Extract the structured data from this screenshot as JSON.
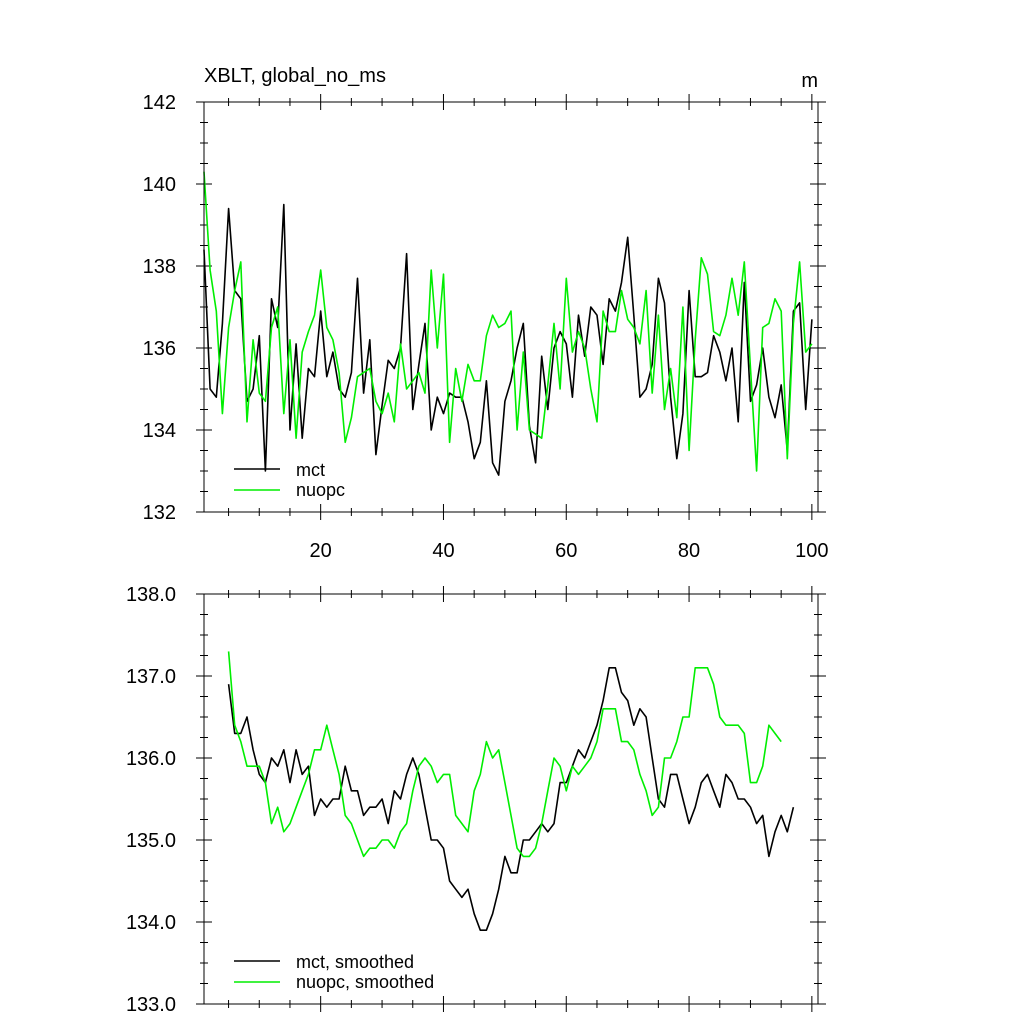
{
  "chart_data": [
    {
      "type": "line",
      "title": "XBLT, global_no_ms",
      "units": "m",
      "xlim": [
        1,
        101
      ],
      "ylim": [
        132,
        142
      ],
      "x_start": 1,
      "xticks": [
        20,
        40,
        60,
        80,
        100
      ],
      "xtick_labels": [
        "20",
        "40",
        "60",
        "80",
        "100"
      ],
      "yticks": [
        132,
        134,
        136,
        138,
        140,
        142
      ],
      "ytick_labels": [
        "132",
        "134",
        "136",
        "138",
        "140",
        "142"
      ],
      "series": [
        {
          "name": "mct",
          "color": "#000000",
          "values": [
            138.4,
            135.0,
            134.8,
            136.6,
            139.4,
            137.4,
            137.2,
            134.7,
            135.0,
            136.3,
            133.0,
            137.2,
            136.5,
            139.5,
            134.0,
            136.1,
            133.8,
            135.5,
            135.3,
            136.9,
            135.3,
            135.9,
            135.0,
            134.8,
            135.4,
            137.7,
            134.9,
            136.2,
            133.4,
            134.6,
            135.7,
            135.5,
            136.0,
            138.3,
            134.5,
            135.6,
            136.6,
            134.0,
            134.8,
            134.4,
            134.9,
            134.8,
            134.8,
            134.2,
            133.3,
            133.7,
            135.2,
            133.2,
            132.9,
            134.7,
            135.2,
            136.0,
            136.6,
            134.1,
            133.2,
            135.8,
            134.5,
            136.0,
            136.4,
            136.1,
            134.8,
            136.8,
            135.8,
            137.0,
            136.8,
            135.6,
            137.2,
            136.9,
            137.6,
            138.7,
            136.8,
            134.8,
            135.0,
            135.6,
            137.7,
            137.1,
            134.8,
            133.3,
            134.4,
            137.4,
            135.3,
            135.3,
            135.4,
            136.3,
            135.9,
            135.2,
            136.0,
            134.2,
            137.6,
            134.7,
            135.1,
            136.0,
            134.8,
            134.3,
            135.1,
            133.5,
            136.9,
            137.1,
            134.5,
            136.7
          ]
        },
        {
          "name": "nuopc",
          "color": "#00ee00",
          "values": [
            140.3,
            137.9,
            136.9,
            134.4,
            136.5,
            137.4,
            138.1,
            134.2,
            136.2,
            134.9,
            134.7,
            136.5,
            137.0,
            134.4,
            136.2,
            133.8,
            135.9,
            136.4,
            136.8,
            137.9,
            136.5,
            136.2,
            135.4,
            133.7,
            134.3,
            135.3,
            135.4,
            135.5,
            134.7,
            134.4,
            134.9,
            134.2,
            136.1,
            135.0,
            135.2,
            135.4,
            134.9,
            137.9,
            136.0,
            137.8,
            133.7,
            135.5,
            134.7,
            135.6,
            135.2,
            135.2,
            136.3,
            136.8,
            136.5,
            136.6,
            136.9,
            134.0,
            135.9,
            134.0,
            133.9,
            133.8,
            135.1,
            136.6,
            135.0,
            137.7,
            135.9,
            136.4,
            136.0,
            135.0,
            134.2,
            136.9,
            136.4,
            136.4,
            137.4,
            136.7,
            136.5,
            136.1,
            137.4,
            134.9,
            136.8,
            134.5,
            135.5,
            134.3,
            137.0,
            133.5,
            136.2,
            138.2,
            137.8,
            136.4,
            136.3,
            136.8,
            137.7,
            136.8,
            138.1,
            135.5,
            133.0,
            136.5,
            136.6,
            137.2,
            136.9,
            133.3,
            136.6,
            138.1,
            135.9,
            136.1
          ]
        }
      ],
      "legend": [
        "mct",
        "nuopc"
      ],
      "legend_position": "bottom-left"
    },
    {
      "type": "line",
      "title": "",
      "xlim": [
        1,
        101
      ],
      "ylim": [
        133.0,
        138.0
      ],
      "x_start": 5,
      "xticks": [
        20,
        40,
        60,
        80,
        100
      ],
      "xtick_labels": [
        "",
        "",
        "",
        "",
        ""
      ],
      "yticks": [
        133.0,
        134.0,
        135.0,
        136.0,
        137.0,
        138.0
      ],
      "ytick_labels": [
        "133.0",
        "134.0",
        "135.0",
        "136.0",
        "137.0",
        "138.0"
      ],
      "series": [
        {
          "name": "mct, smoothed",
          "color": "#000000",
          "values": [
            136.9,
            136.3,
            136.3,
            136.5,
            136.1,
            135.8,
            135.7,
            136.0,
            135.9,
            136.1,
            135.7,
            136.1,
            135.8,
            135.9,
            135.3,
            135.5,
            135.4,
            135.5,
            135.5,
            135.9,
            135.6,
            135.6,
            135.3,
            135.4,
            135.4,
            135.5,
            135.2,
            135.6,
            135.5,
            135.8,
            136.0,
            135.8,
            135.4,
            135.0,
            135.0,
            134.9,
            134.5,
            134.4,
            134.3,
            134.4,
            134.1,
            133.9,
            133.9,
            134.1,
            134.4,
            134.8,
            134.6,
            134.6,
            135.0,
            135.0,
            135.1,
            135.2,
            135.1,
            135.2,
            135.7,
            135.7,
            135.9,
            136.1,
            136.0,
            136.2,
            136.4,
            136.7,
            137.1,
            137.1,
            136.8,
            136.7,
            136.4,
            136.6,
            136.5,
            136.0,
            135.5,
            135.4,
            135.8,
            135.8,
            135.5,
            135.2,
            135.4,
            135.7,
            135.8,
            135.6,
            135.4,
            135.8,
            135.7,
            135.5,
            135.5,
            135.4,
            135.2,
            135.3,
            134.8,
            135.1,
            135.3,
            135.1,
            135.4
          ]
        },
        {
          "name": "nuopc, smoothed",
          "color": "#00ee00",
          "values": [
            137.3,
            136.4,
            136.2,
            135.9,
            135.9,
            135.9,
            135.7,
            135.2,
            135.4,
            135.1,
            135.2,
            135.4,
            135.6,
            135.8,
            136.1,
            136.1,
            136.4,
            136.1,
            135.8,
            135.3,
            135.2,
            135.0,
            134.8,
            134.9,
            134.9,
            135.0,
            135.0,
            134.9,
            135.1,
            135.2,
            135.6,
            135.9,
            136.0,
            135.9,
            135.7,
            135.8,
            135.8,
            135.3,
            135.2,
            135.1,
            135.6,
            135.8,
            136.2,
            136.0,
            136.1,
            135.7,
            135.3,
            134.9,
            134.8,
            134.8,
            134.9,
            135.2,
            135.6,
            136.0,
            135.9,
            135.6,
            135.9,
            135.8,
            135.9,
            136.0,
            136.2,
            136.6,
            136.6,
            136.6,
            136.2,
            136.2,
            136.1,
            135.8,
            135.6,
            135.3,
            135.4,
            136.0,
            136.0,
            136.2,
            136.5,
            136.5,
            137.1,
            137.1,
            137.1,
            136.9,
            136.5,
            136.4,
            136.4,
            136.4,
            136.3,
            135.7,
            135.7,
            135.9,
            136.4,
            136.3,
            136.2
          ]
        }
      ],
      "legend": [
        "mct, smoothed",
        "nuopc, smoothed"
      ],
      "legend_position": "bottom-left"
    }
  ]
}
